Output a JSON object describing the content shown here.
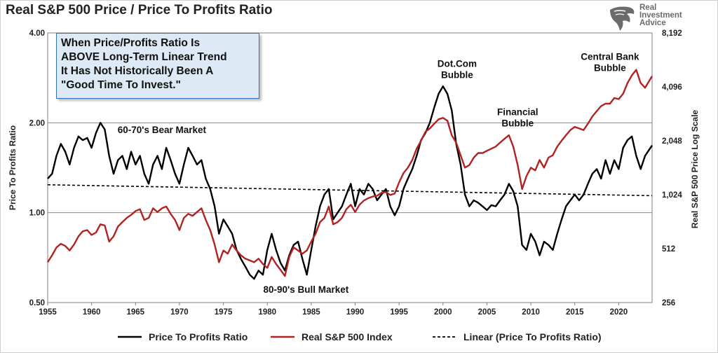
{
  "title": "Real S&P 500 Price / Price To Profits Ratio",
  "logo": {
    "lines": [
      "Real",
      "Investment",
      "Advice"
    ]
  },
  "callout": "When Price/Profits Ratio Is\nABOVE Long-Term Linear Trend\nIt Has Not Historically Been A\n\"Good Time To Invest.\"",
  "chart_data": {
    "type": "line",
    "title": "Real S&P 500 Price / Price To Profits Ratio",
    "xlabel": "",
    "ylabel_left": "Price To Profits Ratio",
    "ylabel_right": "Real S&P 500 Price Log Scale",
    "xlim": [
      1955,
      2023.8
    ],
    "x_ticks": [
      "1955",
      "1960",
      "1965",
      "1970",
      "1975",
      "1980",
      "1985",
      "1990",
      "1995",
      "2000",
      "2005",
      "2010",
      "2015",
      "2020"
    ],
    "y_left": {
      "scale": "log",
      "lim": [
        0.5,
        4.0
      ],
      "ticks": [
        "0.50",
        "1.00",
        "2.00",
        "4.00"
      ]
    },
    "y_right": {
      "scale": "log",
      "lim": [
        256,
        8192
      ],
      "ticks": [
        "256",
        "512",
        "1,024",
        "2,048",
        "4,096",
        "8,192"
      ]
    },
    "gridlines_left": [
      1.0,
      2.0
    ],
    "legend_position": "bottom",
    "series": [
      {
        "name": "Price To Profits Ratio",
        "axis": "left",
        "color": "#000000",
        "style": "solid",
        "points": [
          [
            1955.0,
            1.3
          ],
          [
            1955.5,
            1.35
          ],
          [
            1956.0,
            1.55
          ],
          [
            1956.5,
            1.7
          ],
          [
            1957.0,
            1.6
          ],
          [
            1957.5,
            1.45
          ],
          [
            1958.0,
            1.65
          ],
          [
            1958.5,
            1.8
          ],
          [
            1959.0,
            1.75
          ],
          [
            1959.5,
            1.78
          ],
          [
            1960.0,
            1.65
          ],
          [
            1960.5,
            1.85
          ],
          [
            1961.0,
            2.0
          ],
          [
            1961.5,
            1.9
          ],
          [
            1962.0,
            1.55
          ],
          [
            1962.5,
            1.35
          ],
          [
            1963.0,
            1.5
          ],
          [
            1963.5,
            1.55
          ],
          [
            1964.0,
            1.4
          ],
          [
            1964.5,
            1.6
          ],
          [
            1965.0,
            1.45
          ],
          [
            1965.5,
            1.55
          ],
          [
            1966.0,
            1.35
          ],
          [
            1966.5,
            1.25
          ],
          [
            1967.0,
            1.45
          ],
          [
            1967.5,
            1.55
          ],
          [
            1968.0,
            1.4
          ],
          [
            1968.5,
            1.65
          ],
          [
            1969.0,
            1.5
          ],
          [
            1969.5,
            1.35
          ],
          [
            1970.0,
            1.25
          ],
          [
            1970.5,
            1.45
          ],
          [
            1971.0,
            1.65
          ],
          [
            1971.5,
            1.55
          ],
          [
            1972.0,
            1.45
          ],
          [
            1972.5,
            1.5
          ],
          [
            1973.0,
            1.3
          ],
          [
            1973.5,
            1.2
          ],
          [
            1974.0,
            1.05
          ],
          [
            1974.5,
            0.85
          ],
          [
            1975.0,
            0.95
          ],
          [
            1975.5,
            0.9
          ],
          [
            1976.0,
            0.85
          ],
          [
            1976.5,
            0.75
          ],
          [
            1977.0,
            0.7
          ],
          [
            1977.5,
            0.66
          ],
          [
            1978.0,
            0.62
          ],
          [
            1978.5,
            0.6
          ],
          [
            1979.0,
            0.64
          ],
          [
            1979.5,
            0.62
          ],
          [
            1980.0,
            0.75
          ],
          [
            1980.5,
            0.85
          ],
          [
            1981.0,
            0.75
          ],
          [
            1981.5,
            0.68
          ],
          [
            1982.0,
            0.64
          ],
          [
            1982.5,
            0.72
          ],
          [
            1983.0,
            0.78
          ],
          [
            1983.5,
            0.8
          ],
          [
            1984.0,
            0.7
          ],
          [
            1984.5,
            0.62
          ],
          [
            1985.0,
            0.75
          ],
          [
            1985.5,
            0.9
          ],
          [
            1986.0,
            1.05
          ],
          [
            1986.5,
            1.15
          ],
          [
            1987.0,
            1.2
          ],
          [
            1987.5,
            0.95
          ],
          [
            1988.0,
            1.0
          ],
          [
            1988.5,
            1.05
          ],
          [
            1989.0,
            1.15
          ],
          [
            1989.5,
            1.25
          ],
          [
            1990.0,
            1.05
          ],
          [
            1990.5,
            1.2
          ],
          [
            1991.0,
            1.15
          ],
          [
            1991.5,
            1.25
          ],
          [
            1992.0,
            1.2
          ],
          [
            1992.5,
            1.1
          ],
          [
            1993.0,
            1.15
          ],
          [
            1993.5,
            1.2
          ],
          [
            1994.0,
            1.05
          ],
          [
            1994.5,
            0.98
          ],
          [
            1995.0,
            1.05
          ],
          [
            1995.5,
            1.2
          ],
          [
            1996.0,
            1.3
          ],
          [
            1996.5,
            1.4
          ],
          [
            1997.0,
            1.55
          ],
          [
            1997.5,
            1.75
          ],
          [
            1998.0,
            1.85
          ],
          [
            1998.5,
            2.0
          ],
          [
            1999.0,
            2.25
          ],
          [
            1999.5,
            2.5
          ],
          [
            2000.0,
            2.65
          ],
          [
            2000.5,
            2.5
          ],
          [
            2001.0,
            2.2
          ],
          [
            2001.5,
            1.7
          ],
          [
            2002.0,
            1.45
          ],
          [
            2002.5,
            1.15
          ],
          [
            2003.0,
            1.05
          ],
          [
            2003.5,
            1.1
          ],
          [
            2004.0,
            1.08
          ],
          [
            2004.5,
            1.05
          ],
          [
            2005.0,
            1.02
          ],
          [
            2005.5,
            1.06
          ],
          [
            2006.0,
            1.05
          ],
          [
            2006.5,
            1.1
          ],
          [
            2007.0,
            1.15
          ],
          [
            2007.5,
            1.25
          ],
          [
            2008.0,
            1.18
          ],
          [
            2008.5,
            1.05
          ],
          [
            2009.0,
            0.78
          ],
          [
            2009.5,
            0.75
          ],
          [
            2010.0,
            0.85
          ],
          [
            2010.5,
            0.8
          ],
          [
            2011.0,
            0.72
          ],
          [
            2011.5,
            0.8
          ],
          [
            2012.0,
            0.78
          ],
          [
            2012.5,
            0.75
          ],
          [
            2013.0,
            0.85
          ],
          [
            2013.5,
            0.95
          ],
          [
            2014.0,
            1.05
          ],
          [
            2014.5,
            1.1
          ],
          [
            2015.0,
            1.15
          ],
          [
            2015.5,
            1.1
          ],
          [
            2016.0,
            1.15
          ],
          [
            2016.5,
            1.25
          ],
          [
            2017.0,
            1.35
          ],
          [
            2017.5,
            1.4
          ],
          [
            2018.0,
            1.3
          ],
          [
            2018.5,
            1.5
          ],
          [
            2019.0,
            1.35
          ],
          [
            2019.5,
            1.5
          ],
          [
            2020.0,
            1.4
          ],
          [
            2020.5,
            1.65
          ],
          [
            2021.0,
            1.75
          ],
          [
            2021.5,
            1.8
          ],
          [
            2022.0,
            1.55
          ],
          [
            2022.5,
            1.4
          ],
          [
            2023.0,
            1.55
          ],
          [
            2023.8,
            1.68
          ]
        ]
      },
      {
        "name": "Real S&P 500 Index",
        "axis": "right",
        "color": "#b22222",
        "style": "solid",
        "points": [
          [
            1955.0,
            430
          ],
          [
            1955.5,
            470
          ],
          [
            1956.0,
            520
          ],
          [
            1956.5,
            545
          ],
          [
            1957.0,
            530
          ],
          [
            1957.5,
            500
          ],
          [
            1958.0,
            540
          ],
          [
            1958.5,
            600
          ],
          [
            1959.0,
            640
          ],
          [
            1959.5,
            650
          ],
          [
            1960.0,
            610
          ],
          [
            1960.5,
            630
          ],
          [
            1961.0,
            700
          ],
          [
            1961.5,
            690
          ],
          [
            1962.0,
            560
          ],
          [
            1962.5,
            600
          ],
          [
            1963.0,
            680
          ],
          [
            1963.5,
            720
          ],
          [
            1964.0,
            760
          ],
          [
            1964.5,
            790
          ],
          [
            1965.0,
            830
          ],
          [
            1965.5,
            850
          ],
          [
            1966.0,
            740
          ],
          [
            1966.5,
            760
          ],
          [
            1967.0,
            860
          ],
          [
            1967.5,
            820
          ],
          [
            1968.0,
            860
          ],
          [
            1968.5,
            880
          ],
          [
            1969.0,
            800
          ],
          [
            1969.5,
            740
          ],
          [
            1970.0,
            650
          ],
          [
            1970.5,
            760
          ],
          [
            1971.0,
            800
          ],
          [
            1971.5,
            780
          ],
          [
            1972.0,
            820
          ],
          [
            1972.5,
            860
          ],
          [
            1973.0,
            740
          ],
          [
            1973.5,
            650
          ],
          [
            1974.0,
            540
          ],
          [
            1974.5,
            430
          ],
          [
            1975.0,
            500
          ],
          [
            1975.5,
            480
          ],
          [
            1976.0,
            540
          ],
          [
            1976.5,
            500
          ],
          [
            1977.0,
            470
          ],
          [
            1977.5,
            450
          ],
          [
            1978.0,
            440
          ],
          [
            1978.5,
            430
          ],
          [
            1979.0,
            450
          ],
          [
            1979.5,
            420
          ],
          [
            1980.0,
            400
          ],
          [
            1980.5,
            460
          ],
          [
            1981.0,
            420
          ],
          [
            1981.5,
            390
          ],
          [
            1982.0,
            360
          ],
          [
            1982.5,
            460
          ],
          [
            1983.0,
            520
          ],
          [
            1983.5,
            500
          ],
          [
            1984.0,
            480
          ],
          [
            1984.5,
            500
          ],
          [
            1985.0,
            560
          ],
          [
            1985.5,
            620
          ],
          [
            1986.0,
            720
          ],
          [
            1986.5,
            760
          ],
          [
            1987.0,
            880
          ],
          [
            1987.5,
            700
          ],
          [
            1988.0,
            720
          ],
          [
            1988.5,
            760
          ],
          [
            1989.0,
            850
          ],
          [
            1989.5,
            900
          ],
          [
            1990.0,
            820
          ],
          [
            1990.5,
            900
          ],
          [
            1991.0,
            950
          ],
          [
            1991.5,
            980
          ],
          [
            1992.0,
            1000
          ],
          [
            1992.5,
            1010
          ],
          [
            1993.0,
            1050
          ],
          [
            1993.5,
            1060
          ],
          [
            1994.0,
            1020
          ],
          [
            1994.5,
            1040
          ],
          [
            1995.0,
            1200
          ],
          [
            1995.5,
            1350
          ],
          [
            1996.0,
            1450
          ],
          [
            1996.5,
            1600
          ],
          [
            1997.0,
            1850
          ],
          [
            1997.5,
            2050
          ],
          [
            1998.0,
            2300
          ],
          [
            1998.5,
            2400
          ],
          [
            1999.0,
            2550
          ],
          [
            1999.5,
            2700
          ],
          [
            2000.0,
            2750
          ],
          [
            2000.5,
            2650
          ],
          [
            2001.0,
            2200
          ],
          [
            2001.5,
            2000
          ],
          [
            2002.0,
            1700
          ],
          [
            2002.5,
            1450
          ],
          [
            2003.0,
            1500
          ],
          [
            2003.5,
            1650
          ],
          [
            2004.0,
            1750
          ],
          [
            2004.5,
            1750
          ],
          [
            2005.0,
            1800
          ],
          [
            2005.5,
            1850
          ],
          [
            2006.0,
            1900
          ],
          [
            2006.5,
            2000
          ],
          [
            2007.0,
            2100
          ],
          [
            2007.5,
            2200
          ],
          [
            2008.0,
            1900
          ],
          [
            2008.5,
            1500
          ],
          [
            2009.0,
            1100
          ],
          [
            2009.5,
            1300
          ],
          [
            2010.0,
            1450
          ],
          [
            2010.5,
            1400
          ],
          [
            2011.0,
            1600
          ],
          [
            2011.5,
            1450
          ],
          [
            2012.0,
            1650
          ],
          [
            2012.5,
            1700
          ],
          [
            2013.0,
            1900
          ],
          [
            2013.5,
            2050
          ],
          [
            2014.0,
            2200
          ],
          [
            2014.5,
            2350
          ],
          [
            2015.0,
            2450
          ],
          [
            2015.5,
            2400
          ],
          [
            2016.0,
            2350
          ],
          [
            2016.5,
            2550
          ],
          [
            2017.0,
            2800
          ],
          [
            2017.5,
            3000
          ],
          [
            2018.0,
            3200
          ],
          [
            2018.5,
            3300
          ],
          [
            2019.0,
            3300
          ],
          [
            2019.5,
            3550
          ],
          [
            2020.0,
            3500
          ],
          [
            2020.5,
            3750
          ],
          [
            2021.0,
            4300
          ],
          [
            2021.5,
            4750
          ],
          [
            2022.0,
            5100
          ],
          [
            2022.5,
            4300
          ],
          [
            2023.0,
            4050
          ],
          [
            2023.8,
            4700
          ]
        ]
      },
      {
        "name": "Linear (Price To Profits Ratio)",
        "axis": "left",
        "color": "#000000",
        "style": "dashed",
        "points": [
          [
            1955.0,
            1.24
          ],
          [
            2023.8,
            1.14
          ]
        ]
      }
    ],
    "annotations": [
      {
        "text": "60-70's Bear Market",
        "x": 1968.0,
        "y": 1.85,
        "axis": "left"
      },
      {
        "text": "80-90's Bull Market",
        "x": 1984.4,
        "y": 0.54,
        "axis": "left"
      },
      {
        "text": "Dot.Com\nBubble",
        "x": 2001.6,
        "y_right": 5300
      },
      {
        "text": "Financial\nBubble",
        "x": 2008.5,
        "y_right": 2850
      },
      {
        "text": "Central Bank\nBubble",
        "x": 2019.0,
        "y_right": 5800
      }
    ]
  }
}
